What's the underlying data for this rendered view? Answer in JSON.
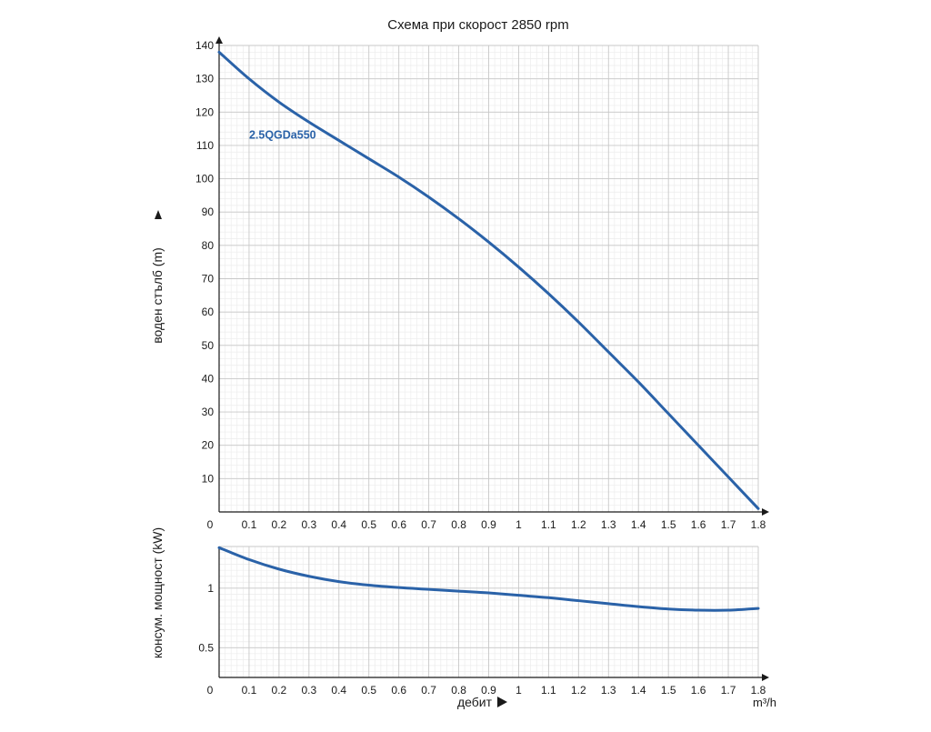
{
  "chart_data": [
    {
      "type": "line",
      "title": "Схема при скорост 2850 rpm",
      "ylabel": "воден стълб (m)",
      "xlabel": "",
      "ylim": [
        0,
        140
      ],
      "xlim": [
        0,
        1.8
      ],
      "x_ticks": [
        "0",
        "0.1",
        "0.2",
        "0.3",
        "0.4",
        "0.5",
        "0.6",
        "0.7",
        "0.8",
        "0.9",
        "1",
        "1.1",
        "1.2",
        "1.3",
        "1.4",
        "1.5",
        "1.6",
        "1.7",
        "1.8"
      ],
      "y_ticks": [
        "10",
        "20",
        "30",
        "40",
        "50",
        "60",
        "70",
        "80",
        "90",
        "100",
        "110",
        "120",
        "130",
        "140"
      ],
      "grid": true,
      "series": [
        {
          "name": "2.5QGDa550",
          "color": "#2a62a8",
          "x": [
            0,
            0.1,
            0.2,
            0.3,
            0.4,
            0.5,
            0.6,
            0.7,
            0.8,
            0.9,
            1.0,
            1.1,
            1.2,
            1.3,
            1.4,
            1.5,
            1.6,
            1.7,
            1.8
          ],
          "y": [
            138,
            130,
            123,
            117,
            111.5,
            106,
            100.5,
            94.5,
            88,
            81,
            73.5,
            65.5,
            57,
            48,
            39,
            29.5,
            20,
            10.5,
            1
          ]
        }
      ]
    },
    {
      "type": "line",
      "title": "",
      "ylabel": "консум. мощност (kW)",
      "xlabel": "дебит",
      "x_unit": "m³/h",
      "ylim": [
        0.25,
        1.35
      ],
      "xlim": [
        0,
        1.8
      ],
      "x_ticks": [
        "0",
        "0.1",
        "0.2",
        "0.3",
        "0.4",
        "0.5",
        "0.6",
        "0.7",
        "0.8",
        "0.9",
        "1",
        "1.1",
        "1.2",
        "1.3",
        "1.4",
        "1.5",
        "1.6",
        "1.7",
        "1.8"
      ],
      "y_ticks": [
        "0.5",
        "1"
      ],
      "grid": true,
      "series": [
        {
          "color": "#2a62a8",
          "x": [
            0,
            0.1,
            0.2,
            0.3,
            0.4,
            0.5,
            0.6,
            0.7,
            0.8,
            0.9,
            1.0,
            1.1,
            1.2,
            1.3,
            1.4,
            1.5,
            1.6,
            1.7,
            1.8
          ],
          "y": [
            1.34,
            1.24,
            1.16,
            1.1,
            1.055,
            1.025,
            1.005,
            0.99,
            0.975,
            0.96,
            0.94,
            0.92,
            0.895,
            0.87,
            0.845,
            0.825,
            0.815,
            0.815,
            0.83
          ]
        }
      ]
    }
  ]
}
